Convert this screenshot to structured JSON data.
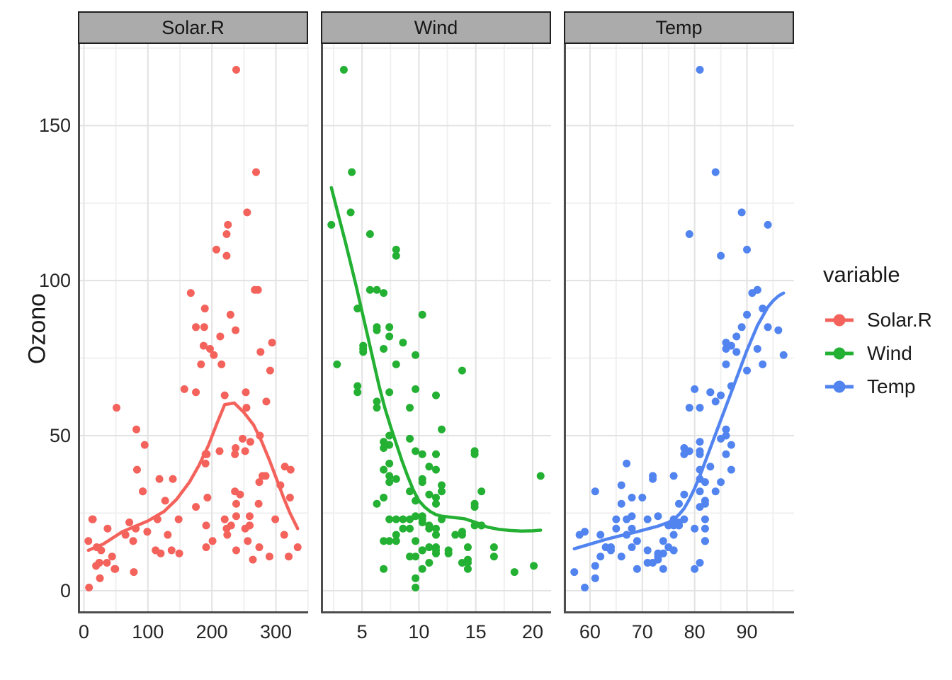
{
  "chart_data": {
    "type": "scatter",
    "ylabel": "Ozono",
    "y_axis": {
      "tick_labels": [
        "0",
        "50",
        "100",
        "150"
      ],
      "ticks": [
        0,
        50,
        100,
        150
      ],
      "minor_ticks": [
        25,
        75,
        125,
        175
      ],
      "range": [
        -7.35,
        176.35
      ],
      "grid": "on"
    },
    "facets": [
      {
        "label": "Solar.R",
        "color": "#f4625c",
        "row_key": 1,
        "ticks": [
          0,
          100,
          200,
          300
        ],
        "tick_labels": [
          "0",
          "100",
          "200",
          "300"
        ],
        "minor_ticks": [
          50,
          150,
          250,
          350
        ],
        "range": [
          -9.35,
          350.35
        ],
        "smooth": [
          [
            7,
            13
          ],
          [
            30,
            15
          ],
          [
            60,
            19
          ],
          [
            100,
            22.5
          ],
          [
            125,
            25.5
          ],
          [
            145,
            29.5
          ],
          [
            165,
            35
          ],
          [
            180,
            40.5
          ],
          [
            195,
            47
          ],
          [
            208,
            54
          ],
          [
            220,
            60
          ],
          [
            235,
            60.5
          ],
          [
            250,
            57.5
          ],
          [
            265,
            53.5
          ],
          [
            278,
            48
          ],
          [
            290,
            42
          ],
          [
            302,
            35.5
          ],
          [
            312,
            30
          ],
          [
            322,
            25
          ],
          [
            334,
            20
          ]
        ]
      },
      {
        "label": "Wind",
        "color": "#23b033",
        "row_key": 2,
        "ticks": [
          5,
          10,
          15,
          20
        ],
        "tick_labels": [
          "5",
          "10",
          "15",
          "20"
        ],
        "minor_ticks": [
          2.5,
          7.5,
          12.5,
          17.5
        ],
        "range": [
          1.38,
          21.62
        ],
        "smooth": [
          [
            2.3,
            130
          ],
          [
            3,
            120
          ],
          [
            3.5,
            113
          ],
          [
            4,
            105.5
          ],
          [
            4.5,
            98
          ],
          [
            5,
            90
          ],
          [
            5.5,
            82
          ],
          [
            6,
            74
          ],
          [
            6.5,
            66
          ],
          [
            7,
            59
          ],
          [
            7.5,
            53
          ],
          [
            8,
            47.5
          ],
          [
            8.5,
            42
          ],
          [
            9,
            37
          ],
          [
            9.5,
            32.5
          ],
          [
            10,
            29
          ],
          [
            10.5,
            27
          ],
          [
            11,
            25.5
          ],
          [
            11.5,
            24.5
          ],
          [
            12,
            24
          ],
          [
            13,
            23.6
          ],
          [
            14,
            23.2
          ],
          [
            15,
            22
          ],
          [
            16,
            20.5
          ],
          [
            17,
            19.8
          ],
          [
            18,
            19.4
          ],
          [
            19,
            19.2
          ],
          [
            20,
            19.3
          ],
          [
            20.7,
            19.5
          ]
        ]
      },
      {
        "label": "Temp",
        "color": "#5284f0",
        "row_key": 3,
        "ticks": [
          60,
          70,
          80,
          90
        ],
        "tick_labels": [
          "60",
          "70",
          "80",
          "90"
        ],
        "minor_ticks": [
          55,
          65,
          75,
          85,
          95
        ],
        "range": [
          55,
          99
        ],
        "smooth": [
          [
            57,
            13.5
          ],
          [
            60,
            15
          ],
          [
            63,
            16.5
          ],
          [
            66,
            17.8
          ],
          [
            69,
            19
          ],
          [
            71,
            19.9
          ],
          [
            73,
            20.8
          ],
          [
            75,
            22
          ],
          [
            76,
            23
          ],
          [
            77,
            24.5
          ],
          [
            78,
            26.5
          ],
          [
            79,
            29.5
          ],
          [
            80,
            33
          ],
          [
            81,
            37
          ],
          [
            82,
            41.5
          ],
          [
            83,
            46
          ],
          [
            84,
            50.5
          ],
          [
            85,
            55
          ],
          [
            86,
            59.5
          ],
          [
            87,
            64
          ],
          [
            88,
            68.5
          ],
          [
            89,
            73
          ],
          [
            90,
            77.5
          ],
          [
            91,
            81.5
          ],
          [
            92,
            85.5
          ],
          [
            93,
            88.5
          ],
          [
            94,
            91.5
          ],
          [
            95,
            93.5
          ],
          [
            96,
            95
          ],
          [
            97,
            96
          ]
        ]
      }
    ],
    "legend": {
      "title": "variable",
      "entries": [
        {
          "label": "Solar.R",
          "color": "#f4625c"
        },
        {
          "label": "Wind",
          "color": "#23b033"
        },
        {
          "label": "Temp",
          "color": "#5284f0"
        }
      ]
    },
    "rows": [
      [
        41,
        190,
        7.4,
        67
      ],
      [
        36,
        118,
        8,
        72
      ],
      [
        12,
        149,
        12.6,
        74
      ],
      [
        18,
        313,
        11.5,
        62
      ],
      [
        28,
        null,
        14.9,
        66
      ],
      [
        23,
        299,
        8.6,
        65
      ],
      [
        19,
        99,
        13.8,
        59
      ],
      [
        8,
        19,
        20.1,
        61
      ],
      [
        7,
        null,
        6.9,
        74
      ],
      [
        16,
        256,
        9.7,
        69
      ],
      [
        11,
        290,
        9.2,
        66
      ],
      [
        14,
        274,
        10.9,
        68
      ],
      [
        18,
        65,
        13.2,
        58
      ],
      [
        14,
        334,
        11.5,
        64
      ],
      [
        34,
        307,
        12,
        66
      ],
      [
        6,
        78,
        18.4,
        57
      ],
      [
        30,
        322,
        11.5,
        68
      ],
      [
        11,
        44,
        9.7,
        62
      ],
      [
        1,
        8,
        9.7,
        59
      ],
      [
        11,
        320,
        16.6,
        73
      ],
      [
        4,
        25,
        9.7,
        61
      ],
      [
        32,
        92,
        12,
        61
      ],
      [
        23,
        13,
        12,
        67
      ],
      [
        45,
        252,
        14.9,
        81
      ],
      [
        115,
        223,
        5.7,
        79
      ],
      [
        37,
        279,
        7.4,
        76
      ],
      [
        29,
        127,
        9.7,
        82
      ],
      [
        71,
        291,
        13.8,
        90
      ],
      [
        39,
        323,
        11.5,
        87
      ],
      [
        23,
        148,
        8,
        82
      ],
      [
        21,
        191,
        14.9,
        77
      ],
      [
        37,
        284,
        20.7,
        72
      ],
      [
        20,
        37,
        9.2,
        65
      ],
      [
        12,
        120,
        11.5,
        73
      ],
      [
        13,
        137,
        10.3,
        76
      ],
      [
        135,
        269,
        4.1,
        84
      ],
      [
        49,
        248,
        9.2,
        85
      ],
      [
        32,
        236,
        9.2,
        81
      ],
      [
        64,
        175,
        4.6,
        83
      ],
      [
        40,
        314,
        10.9,
        83
      ],
      [
        77,
        276,
        5.1,
        88
      ],
      [
        97,
        267,
        6.3,
        92
      ],
      [
        97,
        272,
        5.7,
        92
      ],
      [
        85,
        175,
        7.4,
        89
      ],
      [
        10,
        264,
        14.3,
        73
      ],
      [
        27,
        175,
        14.9,
        81
      ],
      [
        7,
        48,
        14.3,
        80
      ],
      [
        48,
        260,
        6.9,
        81
      ],
      [
        35,
        274,
        10.3,
        82
      ],
      [
        61,
        285,
        6.3,
        84
      ],
      [
        79,
        187,
        5.1,
        87
      ],
      [
        63,
        220,
        11.5,
        85
      ],
      [
        16,
        7,
        6.9,
        74
      ],
      [
        80,
        294,
        8.6,
        86
      ],
      [
        108,
        223,
        8,
        85
      ],
      [
        20,
        81,
        8.6,
        82
      ],
      [
        52,
        82,
        12,
        86
      ],
      [
        82,
        213,
        7.4,
        88
      ],
      [
        50,
        275,
        7.4,
        86
      ],
      [
        64,
        253,
        7.4,
        83
      ],
      [
        59,
        254,
        9.2,
        81
      ],
      [
        39,
        83,
        6.9,
        81
      ],
      [
        9,
        24,
        13.8,
        81
      ],
      [
        16,
        77,
        7.4,
        82
      ],
      [
        78,
        null,
        6.9,
        86
      ],
      [
        35,
        null,
        7.4,
        85
      ],
      [
        66,
        null,
        4.6,
        87
      ],
      [
        122,
        255,
        4,
        89
      ],
      [
        89,
        229,
        10.3,
        90
      ],
      [
        110,
        207,
        8,
        90
      ],
      [
        44,
        192,
        11.5,
        86
      ],
      [
        28,
        273,
        11.5,
        82
      ],
      [
        65,
        157,
        9.7,
        80
      ],
      [
        22,
        71,
        10.3,
        77
      ],
      [
        59,
        51,
        6.3,
        79
      ],
      [
        23,
        115,
        7.4,
        76
      ],
      [
        31,
        244,
        10.9,
        78
      ],
      [
        44,
        190,
        10.3,
        78
      ],
      [
        21,
        259,
        15.5,
        77
      ],
      [
        9,
        36,
        14.3,
        72
      ],
      [
        45,
        212,
        9.7,
        79
      ],
      [
        168,
        238,
        3.4,
        81
      ],
      [
        73,
        215,
        8,
        86
      ],
      [
        76,
        203,
        9.7,
        97
      ],
      [
        118,
        225,
        2.3,
        94
      ],
      [
        84,
        237,
        6.3,
        96
      ],
      [
        85,
        188,
        6.3,
        94
      ],
      [
        96,
        167,
        6.9,
        91
      ],
      [
        78,
        197,
        5.1,
        92
      ],
      [
        73,
        183,
        2.8,
        93
      ],
      [
        91,
        189,
        4.6,
        93
      ],
      [
        47,
        95,
        7.4,
        87
      ],
      [
        32,
        92,
        15.5,
        84
      ],
      [
        20,
        252,
        10.9,
        80
      ],
      [
        23,
        220,
        10.3,
        78
      ],
      [
        21,
        230,
        10.9,
        75
      ],
      [
        24,
        259,
        9.7,
        73
      ],
      [
        44,
        236,
        14.9,
        81
      ],
      [
        21,
        259,
        15.5,
        76
      ],
      [
        28,
        238,
        6.3,
        77
      ],
      [
        9,
        24,
        10.9,
        71
      ],
      [
        13,
        112,
        11.5,
        71
      ],
      [
        46,
        237,
        6.9,
        78
      ],
      [
        18,
        224,
        13.8,
        67
      ],
      [
        13,
        27,
        10.3,
        76
      ],
      [
        24,
        238,
        10.3,
        68
      ],
      [
        16,
        201,
        8,
        82
      ],
      [
        13,
        238,
        12.6,
        64
      ],
      [
        23,
        14,
        9.2,
        71
      ],
      [
        36,
        139,
        10.3,
        81
      ],
      [
        7,
        49,
        10.3,
        69
      ],
      [
        14,
        20,
        16.6,
        63
      ],
      [
        30,
        193,
        6.9,
        70
      ],
      [
        14,
        191,
        14.3,
        75
      ],
      [
        18,
        131,
        8,
        76
      ],
      [
        20,
        223,
        11.5,
        68
      ]
    ]
  }
}
